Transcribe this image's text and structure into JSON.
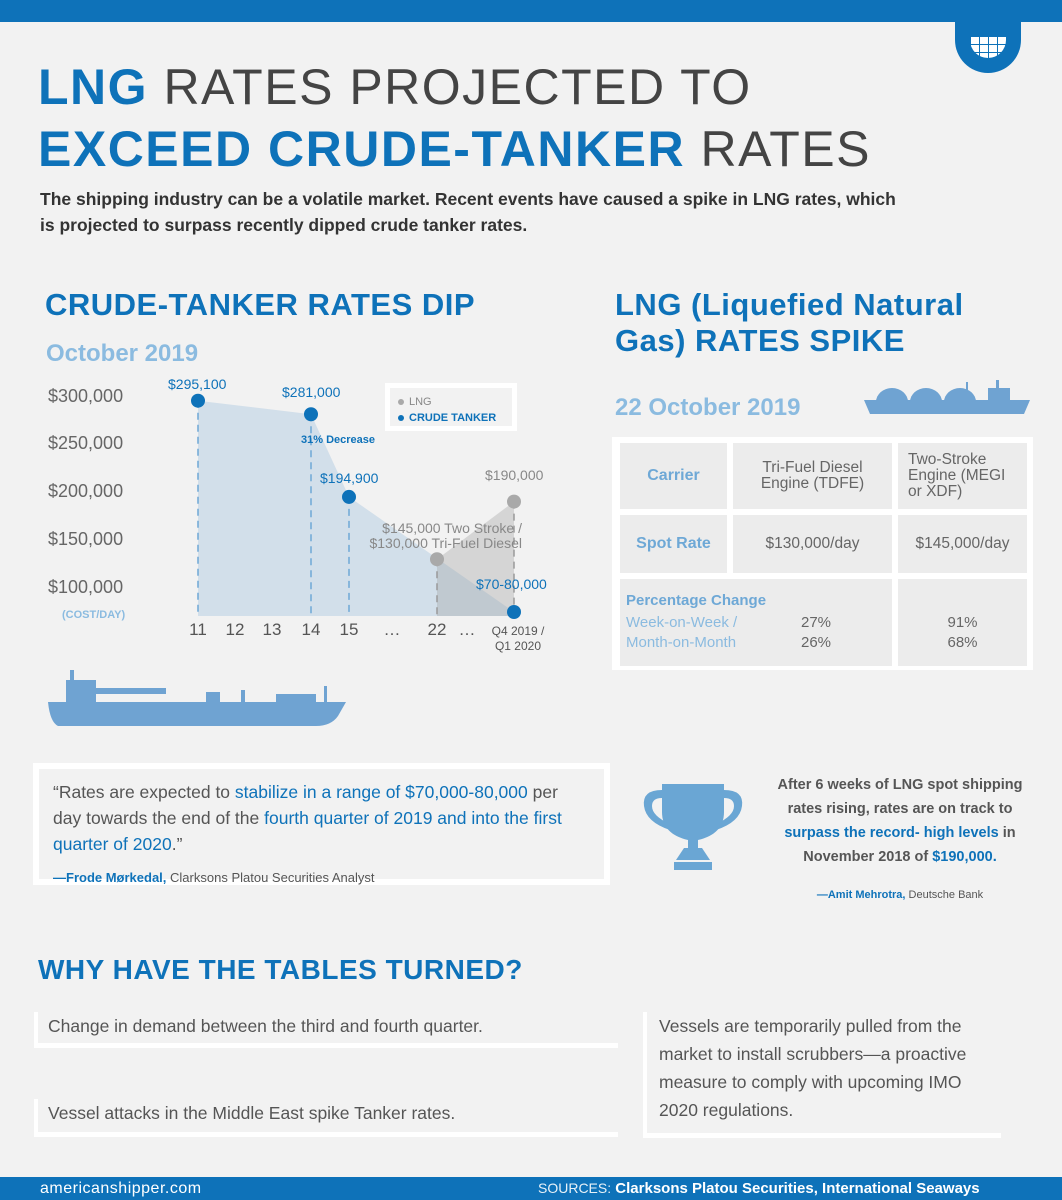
{
  "header": {
    "title_line1_bold": "LNG",
    "title_line1_rest": " RATES PROJECTED TO",
    "title_line2_bold": "EXCEED CRUDE-TANKER",
    "title_line2_rest": " RATES",
    "intro": "The shipping industry can be a volatile market. Recent events have caused a spike in LNG rates, which is projected to surpass recently dipped crude tanker rates."
  },
  "crude_section": {
    "heading": "CRUDE-TANKER RATES DIP",
    "subheading": "October 2019",
    "annotation": "31% Decrease"
  },
  "lng_section": {
    "heading_line1": "LNG (Liquefied Natural",
    "heading_line2": "Gas) RATES SPIKE",
    "subheading": "22 October 2019",
    "table": {
      "carrier_label": "Carrier",
      "col1": "Tri-Fuel Diesel Engine (TDFE)",
      "col2": "Two-Stroke Engine (MEGI or XDF)",
      "spot_label": "Spot Rate",
      "spot1": "$130,000/day",
      "spot2": "$145,000/day",
      "pct_label": "Percentage Change",
      "pct_sub1": "Week-on-Week /",
      "pct_sub2": "Month-on-Month",
      "wow1": "27%",
      "mom1": "26%",
      "wow2": "91%",
      "mom2": "68%"
    }
  },
  "chart_data": {
    "type": "area",
    "ylabel": "(COST/DAY)",
    "y_ticks": [
      "$300,000",
      "$250,000",
      "$200,000",
      "$150,000",
      "$100,000"
    ],
    "y_tick_values": [
      300000,
      250000,
      200000,
      150000,
      100000
    ],
    "categories": [
      "11",
      "12",
      "13",
      "14",
      "15",
      "…",
      "22",
      "…",
      "Q4 2019 / Q1 2020"
    ],
    "legend_position": "top-right",
    "series": [
      {
        "name": "CRUDE TANKER",
        "color": "#0e72b9",
        "points": [
          {
            "x": "11",
            "y": 295100,
            "label": "$295,100"
          },
          {
            "x": "14",
            "y": 281000,
            "label": "$281,000"
          },
          {
            "x": "15",
            "y": 194900,
            "label": "$194,900"
          },
          {
            "x": "Q4 2019 / Q1 2020",
            "y": 75000,
            "label": "$70-80,000"
          }
        ]
      },
      {
        "name": "LNG",
        "color": "#a9a9a9",
        "points": [
          {
            "x": "22",
            "y": 130000,
            "label": "$145,000 Two Stroke / $130,000 Tri-Fuel Diesel"
          },
          {
            "x": "Q4 2019 / Q1 2020",
            "y": 190000,
            "label": "$190,000"
          }
        ]
      }
    ]
  },
  "quote_left": {
    "p1": "“Rates are expected to ",
    "h1": "stabilize in a range of $70,000-80,000",
    "p2": " per day towards the end of the ",
    "h2": "fourth quarter of 2019 and into the first quarter of 2020",
    "p3": ".”",
    "author": "—Frode Mørkedal,",
    "role": " Clarksons Platou Securities Analyst"
  },
  "quote_right": {
    "p1": "After 6 weeks of LNG spot shipping rates rising, rates are on track to ",
    "h1": "surpass the record- high levels",
    "p2": " in November 2018 of ",
    "h2": "$190,000.",
    "author": "—Amit Mehrotra,",
    "role": " Deutsche Bank"
  },
  "why": {
    "heading": "WHY HAVE THE TABLES TURNED?",
    "reason1": "Change in demand between the third and fourth quarter.",
    "reason2": "Vessel attacks in the Middle East spike Tanker rates.",
    "reason3": "Vessels are temporarily pulled from the market to install scrubbers—a proactive measure to comply with upcoming IMO 2020 regulations."
  },
  "footer": {
    "site": "americanshipper.com",
    "sources_label": "SOURCES:",
    "sources": " Clarksons Platou Securities, International Seaways"
  },
  "colors": {
    "brand": "#0e72b9",
    "light": "#8bbbe0",
    "bg": "#f2f2f2"
  }
}
